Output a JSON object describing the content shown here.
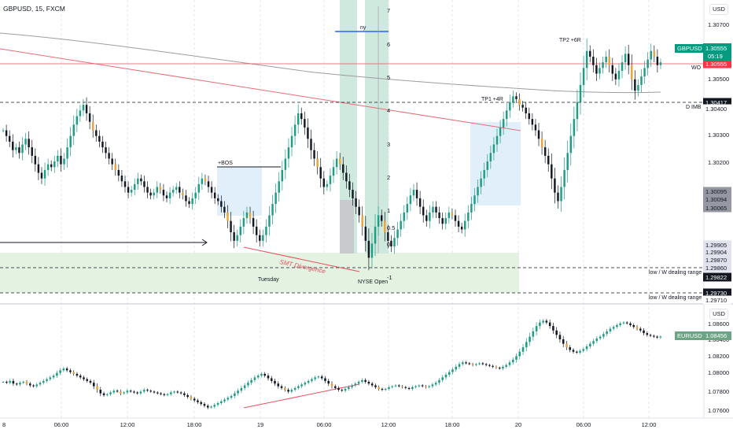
{
  "header": {
    "title": "GBPUSD, 15, FXCM"
  },
  "currency_buttons": {
    "top": "USD",
    "bottom": "USD"
  },
  "chart_data": [
    {
      "type": "candlestick",
      "symbol": "GBPUSD",
      "title": "GBPUSD, 15, FXCM",
      "ylim": [
        1.2971,
        1.3078
      ],
      "price_ticks": [
        "1.30700",
        "1.30500",
        "1.30300",
        "1.30200",
        "1.30065"
      ],
      "last_price": {
        "label": "GBPUSD",
        "value": "1.30555",
        "timer": "05:19",
        "color": "#089981"
      },
      "price_tags": [
        {
          "value": "1.30555",
          "price": 1.30555,
          "bg": "#f23645",
          "fg": "#ffffff"
        },
        {
          "value": "1.30417",
          "price": 1.30417,
          "bg": "#131722",
          "fg": "#ffffff"
        },
        {
          "value": "1.30400",
          "price": 1.30395,
          "bg": "#ffffff",
          "fg": "#131722"
        },
        {
          "value": "1.30095",
          "price": 1.30095,
          "bg": "#9598a1",
          "fg": "#131722"
        },
        {
          "value": "1.30094",
          "price": 1.3008,
          "bg": "#9598a1",
          "fg": "#131722"
        },
        {
          "value": "1.30065",
          "price": 1.30065,
          "bg": "#9598a1",
          "fg": "#131722"
        },
        {
          "value": "1.29905",
          "price": 1.29905,
          "bg": "#e0e3eb",
          "fg": "#131722"
        },
        {
          "value": "1.29904",
          "price": 1.2989,
          "bg": "#e0e3eb",
          "fg": "#131722"
        },
        {
          "value": "1.29870",
          "price": 1.2987,
          "bg": "#e0e3eb",
          "fg": "#131722"
        },
        {
          "value": "1.29860",
          "price": 1.29855,
          "bg": "#e0e3eb",
          "fg": "#131722"
        },
        {
          "value": "1.29822",
          "price": 1.29822,
          "bg": "#131722",
          "fg": "#ffffff"
        },
        {
          "value": "1.29730",
          "price": 1.2973,
          "bg": "#131722",
          "fg": "#ffffff"
        },
        {
          "value": "1.29710",
          "price": 1.29712,
          "bg": "#ffffff",
          "fg": "#131722"
        }
      ],
      "fib_levels": [
        "7",
        "6",
        "5",
        "4",
        "3",
        "2",
        "1",
        "0.5",
        "0",
        "-1"
      ],
      "annotations": {
        "bos": "+BOS",
        "tp1": "TP1 +4R",
        "tp2": "TP2 +6R",
        "smt": "SMT Divergence",
        "tuesday": "Tuesday",
        "nyse": "NYSE Open",
        "ny": "ny",
        "wo": "WO",
        "dimb": "D IMB",
        "dealing1": "low / W dealing range",
        "dealing2": "low / W dealing range"
      },
      "closes": [
        1.3032,
        1.303,
        1.3028,
        1.3025,
        1.3026,
        1.3024,
        1.3027,
        1.3029,
        1.3026,
        1.3023,
        1.302,
        1.3017,
        1.3015,
        1.3018,
        1.302,
        1.3019,
        1.3021,
        1.3023,
        1.302,
        1.3022,
        1.3026,
        1.303,
        1.3034,
        1.3037,
        1.3039,
        1.3041,
        1.3038,
        1.3035,
        1.3032,
        1.303,
        1.3028,
        1.3026,
        1.3024,
        1.3022,
        1.302,
        1.3018,
        1.3016,
        1.3014,
        1.3012,
        1.301,
        1.3011,
        1.3013,
        1.3015,
        1.3014,
        1.3012,
        1.301,
        1.3009,
        1.301,
        1.3012,
        1.3011,
        1.3009,
        1.3008,
        1.301,
        1.3011,
        1.3012,
        1.301,
        1.3009,
        1.3007,
        1.3006,
        1.3008,
        1.301,
        1.3013,
        1.3015,
        1.3014,
        1.3012,
        1.301,
        1.3008,
        1.3007,
        1.3005,
        1.3003,
        1.3,
        1.2996,
        1.2993,
        1.2995,
        1.2998,
        1.3001,
        1.3003,
        1.3001,
        1.2998,
        1.2995,
        1.2993,
        1.2995,
        1.2998,
        1.3002,
        1.3006,
        1.301,
        1.3014,
        1.3018,
        1.3022,
        1.3026,
        1.303,
        1.3034,
        1.3038,
        1.3036,
        1.3033,
        1.3029,
        1.3025,
        1.3022,
        1.3019,
        1.3015,
        1.3012,
        1.3013,
        1.3016,
        1.3019,
        1.3022,
        1.302,
        1.3017,
        1.3014,
        1.3011,
        1.3008,
        1.3005,
        1.3002,
        1.2998,
        1.2993,
        1.2987,
        1.2992,
        1.2998,
        1.3002,
        1.3,
        1.2996,
        1.2993,
        1.2991,
        1.2994,
        1.2997,
        1.3,
        1.3003,
        1.3006,
        1.3009,
        1.3011,
        1.3008,
        1.3005,
        1.3002,
        1.3,
        1.3003,
        1.3005,
        1.3003,
        1.3001,
        1.2999,
        1.3001,
        1.3003,
        1.3002,
        1.3,
        1.2998,
        1.2997,
        1.3,
        1.3003,
        1.3006,
        1.3009,
        1.3012,
        1.3015,
        1.3018,
        1.3021,
        1.3024,
        1.3027,
        1.303,
        1.3033,
        1.3036,
        1.3039,
        1.3042,
        1.3044,
        1.3043,
        1.3041,
        1.304,
        1.3038,
        1.3036,
        1.3034,
        1.3032,
        1.3029,
        1.3026,
        1.3023,
        1.302,
        1.3015,
        1.301,
        1.3007,
        1.3012,
        1.3018,
        1.3024,
        1.303,
        1.3036,
        1.3042,
        1.3048,
        1.3054,
        1.306,
        1.3058,
        1.3055,
        1.3052,
        1.3054,
        1.3056,
        1.3058,
        1.3055,
        1.3052,
        1.305,
        1.3053,
        1.3056,
        1.3059,
        1.3055,
        1.305,
        1.3046,
        1.3048,
        1.3051,
        1.3054,
        1.3057,
        1.306,
        1.3058,
        1.3055,
        1.3056
      ]
    },
    {
      "type": "candlestick",
      "symbol": "EURUSD",
      "ylim": [
        1.0755,
        1.0875
      ],
      "price_ticks": [
        "1.08600",
        "1.08400",
        "1.08200",
        "1.08000",
        "1.07800",
        "1.07600"
      ],
      "last_price": {
        "label": "EURUSD",
        "value": "1.08456",
        "color": "#6ba583"
      },
      "x_ticks": [
        "8",
        "06:00",
        "12:00",
        "18:00",
        "19",
        "06:00",
        "12:00",
        "18:00",
        "20",
        "06:00",
        "12:00"
      ],
      "closes": [
        1.0795,
        1.0794,
        1.0796,
        1.0793,
        1.0792,
        1.0794,
        1.0795,
        1.0793,
        1.0791,
        1.079,
        1.0792,
        1.0794,
        1.0796,
        1.0798,
        1.08,
        1.0802,
        1.0805,
        1.0808,
        1.081,
        1.0808,
        1.0806,
        1.0804,
        1.0802,
        1.08,
        1.0798,
        1.0796,
        1.0794,
        1.079,
        1.0786,
        1.0782,
        1.078,
        1.0781,
        1.0783,
        1.0785,
        1.0784,
        1.0782,
        1.0783,
        1.0785,
        1.0784,
        1.0783,
        1.0782,
        1.0784,
        1.0786,
        1.0785,
        1.0784,
        1.0783,
        1.0782,
        1.0781,
        1.078,
        1.0781,
        1.0783,
        1.0784,
        1.0783,
        1.0782,
        1.078,
        1.0778,
        1.0776,
        1.0774,
        1.0772,
        1.077,
        1.0768,
        1.0766,
        1.0767,
        1.0769,
        1.0771,
        1.0773,
        1.0775,
        1.0777,
        1.0779,
        1.0782,
        1.0785,
        1.0788,
        1.0791,
        1.0794,
        1.0797,
        1.08,
        1.0802,
        1.0804,
        1.0802,
        1.0799,
        1.0796,
        1.0793,
        1.079,
        1.0788,
        1.0786,
        1.0784,
        1.0786,
        1.0788,
        1.079,
        1.0792,
        1.0794,
        1.0796,
        1.0798,
        1.08,
        1.0801,
        1.0799,
        1.0796,
        1.0793,
        1.079,
        1.0788,
        1.0786,
        1.0785,
        1.0787,
        1.0789,
        1.0791,
        1.0793,
        1.0795,
        1.0797,
        1.0795,
        1.0793,
        1.0791,
        1.0789,
        1.0787,
        1.0786,
        1.0787,
        1.0789,
        1.079,
        1.0791,
        1.079,
        1.0789,
        1.0788,
        1.0787,
        1.0789,
        1.079,
        1.0791,
        1.079,
        1.0789,
        1.079,
        1.0792,
        1.0794,
        1.0797,
        1.08,
        1.0803,
        1.0806,
        1.0809,
        1.0812,
        1.0815,
        1.0817,
        1.0816,
        1.0815,
        1.0814,
        1.0815,
        1.0816,
        1.0815,
        1.0814,
        1.0813,
        1.0812,
        1.0811,
        1.081,
        1.0812,
        1.0814,
        1.0817,
        1.082,
        1.0824,
        1.0829,
        1.0834,
        1.084,
        1.0846,
        1.0852,
        1.0858,
        1.0862,
        1.0864,
        1.0862,
        1.0858,
        1.0853,
        1.0848,
        1.0843,
        1.0838,
        1.0834,
        1.0831,
        1.0829,
        1.0828,
        1.083,
        1.0832,
        1.0835,
        1.0838,
        1.0841,
        1.0844,
        1.0846,
        1.0849,
        1.0852,
        1.0855,
        1.0857,
        1.0859,
        1.0861,
        1.0862,
        1.0861,
        1.0859,
        1.0857,
        1.0855,
        1.0853,
        1.085,
        1.0848,
        1.0847,
        1.0846,
        1.0845,
        1.0846
      ]
    }
  ]
}
